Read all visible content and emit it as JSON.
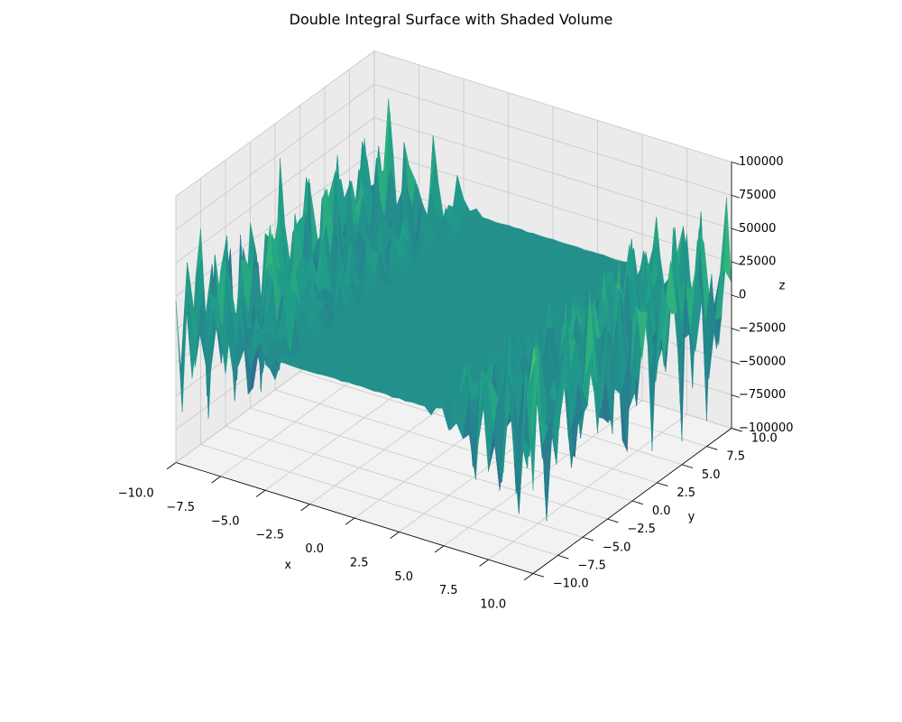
{
  "chart_data": {
    "type": "surface3d",
    "title": "Double Integral Surface with Shaded Volume",
    "xlabel": "x",
    "ylabel": "y",
    "zlabel": "z",
    "xlim": [
      -10,
      10
    ],
    "ylim": [
      -10,
      10
    ],
    "zlim": [
      -100000,
      100000
    ],
    "x_ticks": [
      "−10.0",
      "−7.5",
      "−5.0",
      "−2.5",
      "0.0",
      "2.5",
      "5.0",
      "7.5",
      "10.0"
    ],
    "y_ticks": [
      "−10.0",
      "−7.5",
      "−5.0",
      "−2.5",
      "0.0",
      "2.5",
      "5.0",
      "7.5",
      "10.0"
    ],
    "z_ticks": [
      "−100000",
      "−75000",
      "−50000",
      "−25000",
      "0",
      "25000",
      "50000",
      "75000",
      "100000"
    ],
    "x_tick_values": [
      -10,
      -7.5,
      -5,
      -2.5,
      0,
      2.5,
      5,
      7.5,
      10
    ],
    "y_tick_values": [
      -10,
      -7.5,
      -5,
      -2.5,
      0,
      2.5,
      5,
      7.5,
      10
    ],
    "z_tick_values": [
      -100000,
      -75000,
      -50000,
      -25000,
      0,
      25000,
      50000,
      75000,
      100000
    ],
    "colormap": "viridis",
    "grid": true,
    "surface_description": "Flat near z = 0 for |x| < about 5; strongly oscillating spikes between about -100000 and +100000 for |x| > about 5 across the full y range"
  }
}
